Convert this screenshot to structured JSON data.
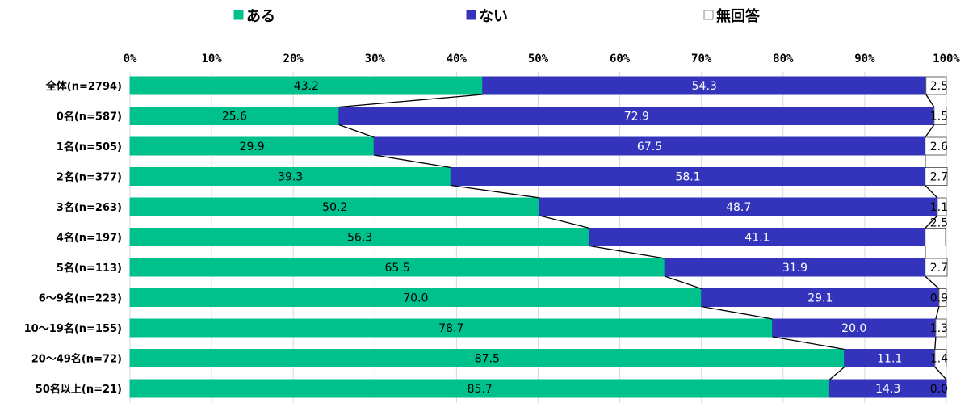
{
  "chart_data": {
    "type": "bar",
    "orientation": "horizontal",
    "stacked": true,
    "categories": [
      "全体(n=2794)",
      "0名(n=587)",
      "1名(n=505)",
      "2名(n=377)",
      "3名(n=263)",
      "4名(n=197)",
      "5名(n=113)",
      "6～9名(n=223)",
      "10～19名(n=155)",
      "20～49名(n=72)",
      "50名以上(n=21)"
    ],
    "series": [
      {
        "name": "ある",
        "color": "#00c08b",
        "values": [
          43.2,
          25.6,
          29.9,
          39.3,
          50.2,
          56.3,
          65.5,
          70.0,
          78.7,
          87.5,
          85.7
        ],
        "labels": [
          "43.2",
          "25.6",
          "29.9",
          "39.3",
          "50.2",
          "56.3",
          "65.5",
          "70.0",
          "78.7",
          "87.5",
          "85.7"
        ]
      },
      {
        "name": "ない",
        "color": "#3333bb",
        "values": [
          54.3,
          72.9,
          67.5,
          58.1,
          48.7,
          41.1,
          31.9,
          29.1,
          20.0,
          11.1,
          14.3
        ],
        "labels": [
          "54.3",
          "72.9",
          "67.5",
          "58.1",
          "48.7",
          "41.1",
          "31.9",
          "29.1",
          "20.0",
          "11.1",
          "14.3"
        ]
      },
      {
        "name": "無回答",
        "color": "#ffffff",
        "values": [
          2.5,
          1.5,
          2.6,
          2.7,
          1.1,
          2.5,
          2.7,
          0.9,
          1.3,
          1.4,
          0.0
        ],
        "labels": [
          "2.5",
          "1.5",
          "2.6",
          "2.7",
          "1.1",
          "2.5",
          "2.7",
          "0.9",
          "1.3",
          "1.4",
          "0.0"
        ]
      }
    ],
    "xticks": [
      "0%",
      "10%",
      "20%",
      "30%",
      "40%",
      "50%",
      "60%",
      "70%",
      "80%",
      "90%",
      "100%"
    ],
    "xlim": [
      0,
      100
    ],
    "legend_position": "top",
    "series_lines": true,
    "grid": true
  }
}
